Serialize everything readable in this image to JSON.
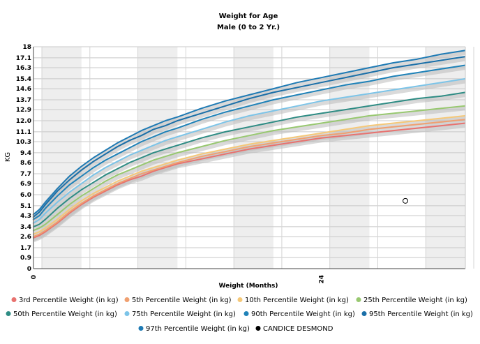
{
  "chart_data": {
    "type": "line",
    "title": "Weight for Age",
    "subtitle": "Male (0 to 2 Yr.)",
    "xlabel": "Weight (Months)",
    "ylabel": "KG",
    "xlim": [
      0,
      36
    ],
    "ylim": [
      0,
      18
    ],
    "x_ticks": [
      {
        "value": 0,
        "label": "0"
      },
      {
        "value": 24,
        "label": "24"
      }
    ],
    "y_ticks": [
      {
        "value": 0,
        "label": "0"
      },
      {
        "value": 0.9,
        "label": "0.9"
      },
      {
        "value": 1.7,
        "label": "1.7"
      },
      {
        "value": 2.6,
        "label": "2.6"
      },
      {
        "value": 3.4,
        "label": "3.4"
      },
      {
        "value": 4.3,
        "label": "4.3"
      },
      {
        "value": 5.1,
        "label": "5.1"
      },
      {
        "value": 6.0,
        "label": "6.0"
      },
      {
        "value": 6.9,
        "label": "6.9"
      },
      {
        "value": 7.7,
        "label": "7.7"
      },
      {
        "value": 8.6,
        "label": "8.6"
      },
      {
        "value": 9.4,
        "label": "9.4"
      },
      {
        "value": 10.3,
        "label": "10.3"
      },
      {
        "value": 11.1,
        "label": "11.1"
      },
      {
        "value": 12.0,
        "label": "12.0"
      },
      {
        "value": 12.9,
        "label": "12.9"
      },
      {
        "value": 13.7,
        "label": "13.7"
      },
      {
        "value": 14.6,
        "label": "14.6"
      },
      {
        "value": 15.4,
        "label": "15.4"
      },
      {
        "value": 16.3,
        "label": "16.3"
      },
      {
        "value": 17.1,
        "label": "17.1"
      },
      {
        "value": 18,
        "label": "18"
      }
    ],
    "grid": true,
    "legend_position": "bottom",
    "x": [
      0,
      0.5,
      1,
      2,
      3,
      4,
      5,
      6,
      7,
      8,
      9,
      10,
      11,
      12,
      14,
      16,
      18,
      20,
      22,
      24,
      26,
      28,
      30,
      32,
      34,
      36
    ],
    "series": [
      {
        "name": "3rd Percentile Weight (in kg)",
        "color": "#e8726f",
        "values": [
          2.5,
          2.7,
          3.0,
          3.7,
          4.5,
          5.2,
          5.8,
          6.3,
          6.8,
          7.2,
          7.5,
          7.9,
          8.2,
          8.5,
          8.9,
          9.3,
          9.7,
          10.0,
          10.3,
          10.6,
          10.8,
          11.0,
          11.2,
          11.4,
          11.6,
          11.8
        ]
      },
      {
        "name": "5th Percentile Weight (in kg)",
        "color": "#f0a070",
        "values": [
          2.6,
          2.8,
          3.1,
          3.8,
          4.6,
          5.3,
          5.9,
          6.4,
          6.9,
          7.3,
          7.7,
          8.0,
          8.3,
          8.6,
          9.1,
          9.5,
          9.9,
          10.2,
          10.5,
          10.8,
          11.0,
          11.3,
          11.5,
          11.7,
          11.9,
          12.1
        ]
      },
      {
        "name": "10th Percentile Weight (in kg)",
        "color": "#f5c878",
        "values": [
          2.8,
          3.0,
          3.3,
          4.0,
          4.8,
          5.5,
          6.1,
          6.6,
          7.1,
          7.5,
          7.9,
          8.2,
          8.5,
          8.8,
          9.3,
          9.7,
          10.1,
          10.4,
          10.7,
          11.0,
          11.3,
          11.6,
          11.8,
          12.0,
          12.2,
          12.4
        ]
      },
      {
        "name": "25th Percentile Weight (in kg)",
        "color": "#98c870",
        "values": [
          3.1,
          3.3,
          3.6,
          4.4,
          5.2,
          5.9,
          6.5,
          7.1,
          7.6,
          8.0,
          8.4,
          8.8,
          9.1,
          9.4,
          9.9,
          10.4,
          10.8,
          11.2,
          11.5,
          11.8,
          12.1,
          12.4,
          12.6,
          12.8,
          13.0,
          13.2
        ]
      },
      {
        "name": "50th Percentile Weight (in kg)",
        "color": "#2e8c84",
        "values": [
          3.4,
          3.6,
          4.0,
          4.9,
          5.7,
          6.4,
          7.0,
          7.6,
          8.1,
          8.6,
          9.0,
          9.4,
          9.7,
          10.0,
          10.6,
          11.1,
          11.5,
          11.9,
          12.3,
          12.6,
          12.9,
          13.2,
          13.5,
          13.8,
          14.0,
          14.3
        ]
      },
      {
        "name": "75th Percentile Weight (in kg)",
        "color": "#7cc4e8",
        "values": [
          3.7,
          4.0,
          4.5,
          5.4,
          6.2,
          6.9,
          7.6,
          8.2,
          8.7,
          9.2,
          9.6,
          10.0,
          10.4,
          10.7,
          11.3,
          11.9,
          12.4,
          12.8,
          13.2,
          13.6,
          13.9,
          14.2,
          14.5,
          14.8,
          15.1,
          15.4
        ]
      },
      {
        "name": "90th Percentile Weight (in kg)",
        "color": "#1f82b8",
        "values": [
          4.0,
          4.3,
          4.9,
          5.9,
          6.8,
          7.5,
          8.2,
          8.8,
          9.3,
          9.8,
          10.3,
          10.7,
          11.1,
          11.4,
          12.1,
          12.7,
          13.2,
          13.7,
          14.1,
          14.5,
          14.9,
          15.2,
          15.6,
          15.9,
          16.2,
          16.5
        ]
      },
      {
        "name": "95th Percentile Weight (in kg)",
        "color": "#1a6fa8",
        "values": [
          4.2,
          4.6,
          5.2,
          6.3,
          7.2,
          8.0,
          8.7,
          9.3,
          9.9,
          10.4,
          10.8,
          11.3,
          11.6,
          12.0,
          12.6,
          13.2,
          13.8,
          14.3,
          14.7,
          15.1,
          15.5,
          15.9,
          16.3,
          16.6,
          16.9,
          17.2
        ]
      },
      {
        "name": "97th Percentile Weight (in kg)",
        "color": "#1e7ab4",
        "values": [
          4.4,
          4.8,
          5.4,
          6.5,
          7.5,
          8.3,
          9.0,
          9.6,
          10.2,
          10.7,
          11.2,
          11.6,
          12.0,
          12.3,
          13.0,
          13.6,
          14.1,
          14.6,
          15.1,
          15.5,
          15.9,
          16.3,
          16.7,
          17.0,
          17.4,
          17.7
        ]
      }
    ],
    "patient": {
      "name": "CANDICE  DESMOND",
      "color": "#000000",
      "points": [
        {
          "x": 31,
          "y": 5.5
        }
      ]
    }
  }
}
